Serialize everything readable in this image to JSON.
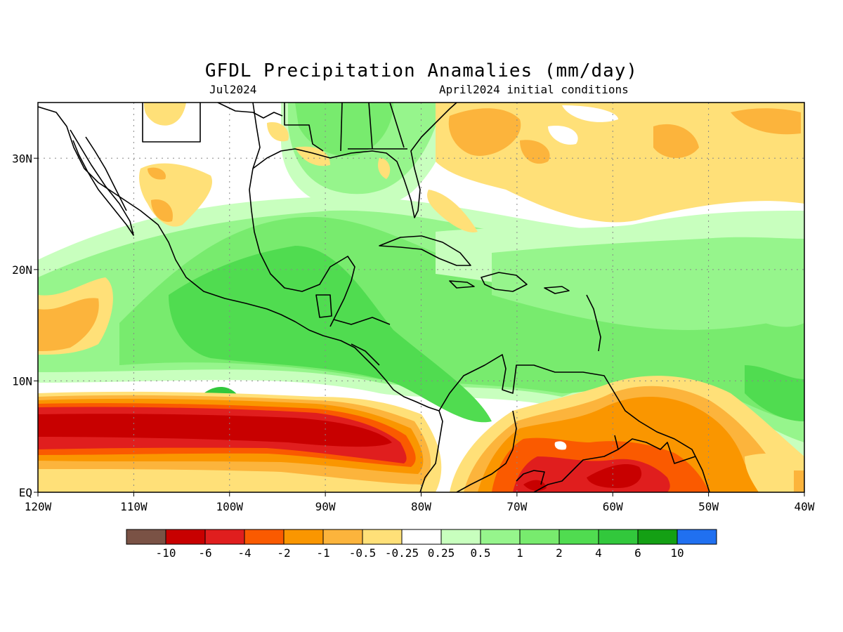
{
  "title": "GFDL Precipitation Anamalies (mm/day)",
  "subtitle_left": "Jul2024",
  "subtitle_right": "April2024 initial conditions",
  "map": {
    "lon_range": [
      -120,
      -40
    ],
    "lat_range": [
      0,
      35
    ],
    "grid": "dotted",
    "lon_ticks": [
      {
        "value": -120,
        "label": "120W"
      },
      {
        "value": -110,
        "label": "110W"
      },
      {
        "value": -100,
        "label": "100W"
      },
      {
        "value": -90,
        "label": "90W"
      },
      {
        "value": -80,
        "label": "80W"
      },
      {
        "value": -70,
        "label": "70W"
      },
      {
        "value": -60,
        "label": "60W"
      },
      {
        "value": -50,
        "label": "50W"
      },
      {
        "value": -40,
        "label": "40W"
      }
    ],
    "lat_ticks": [
      {
        "value": 0,
        "label": "EQ"
      },
      {
        "value": 10,
        "label": "10N"
      },
      {
        "value": 20,
        "label": "20N"
      },
      {
        "value": 30,
        "label": "30N"
      }
    ]
  },
  "colorbar": {
    "colors": [
      "#7a5245",
      "#c80000",
      "#e01e1e",
      "#fa5a00",
      "#fa9600",
      "#fcb43c",
      "#ffe078",
      "#ffffff",
      "#c8ffbe",
      "#96f58c",
      "#78eb6e",
      "#50dc50",
      "#32c83c",
      "#14a014",
      "#2070f0"
    ],
    "labels": [
      "-10",
      "-6",
      "-4",
      "-2",
      "-1",
      "-0.5",
      "-0.25",
      "0.25",
      "0.5",
      "1",
      "2",
      "4",
      "6",
      "10"
    ]
  }
}
